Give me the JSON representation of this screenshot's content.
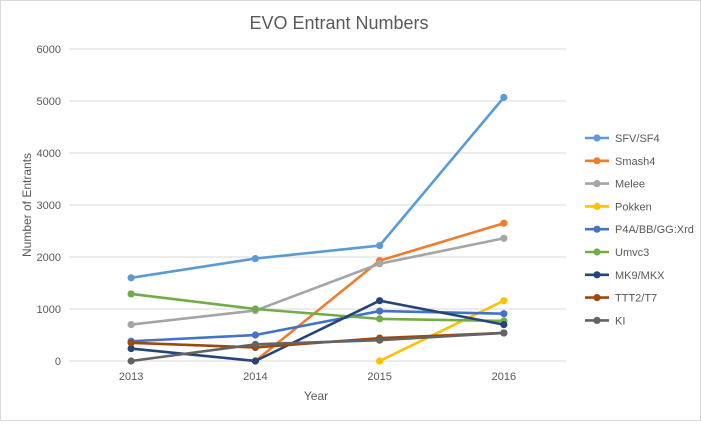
{
  "chart_data": {
    "type": "line",
    "title": "EVO Entrant Numbers",
    "xlabel": "Year",
    "ylabel": "Number of Entrants",
    "categories": [
      "2013",
      "2014",
      "2015",
      "2016"
    ],
    "ylim": [
      0,
      6000
    ],
    "yticks": [
      "0",
      "1000",
      "2000",
      "3000",
      "4000",
      "5000",
      "6000"
    ],
    "grid": true,
    "legend_position": "right",
    "series": [
      {
        "name": "SFV/SF4",
        "color": "#5B9BD5",
        "values": [
          1600,
          1970,
          2220,
          5070
        ]
      },
      {
        "name": "Smash4",
        "color": "#ED7D31",
        "values": [
          null,
          0,
          1930,
          2650
        ]
      },
      {
        "name": "Melee",
        "color": "#A5A5A5",
        "values": [
          700,
          970,
          1870,
          2360
        ]
      },
      {
        "name": "Pokken",
        "color": "#FFC000",
        "values": [
          null,
          null,
          0,
          1160
        ]
      },
      {
        "name": "P4A/BB/GG:Xrd",
        "color": "#4472C4",
        "values": [
          380,
          500,
          960,
          910
        ]
      },
      {
        "name": "Umvc3",
        "color": "#70AD47",
        "values": [
          1290,
          1000,
          810,
          770
        ]
      },
      {
        "name": "MK9/MKX",
        "color": "#264478",
        "values": [
          240,
          0,
          1160,
          700
        ]
      },
      {
        "name": "TTT2/T7",
        "color": "#9E480E",
        "values": [
          350,
          260,
          440,
          540
        ]
      },
      {
        "name": "KI",
        "color": "#636363",
        "values": [
          0,
          320,
          400,
          540
        ]
      }
    ]
  }
}
